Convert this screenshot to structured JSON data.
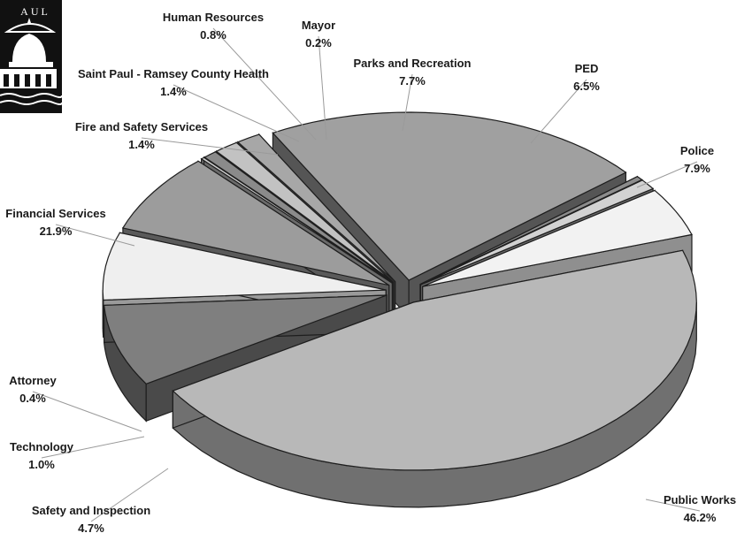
{
  "chart_data": {
    "type": "pie",
    "title": "",
    "slices": [
      {
        "label": "Public Works",
        "value": 46.2,
        "value_label": "46.2%",
        "color": "#b8b8b8",
        "side": "#707070"
      },
      {
        "label": "Police",
        "value": 7.9,
        "value_label": "7.9%",
        "color": "#7f7f7f",
        "side": "#4a4a4a"
      },
      {
        "label": "PED",
        "value": 6.5,
        "value_label": "6.5%",
        "color": "#efefef",
        "side": "#9a9a9a"
      },
      {
        "label": "Parks and Recreation",
        "value": 7.7,
        "value_label": "7.7%",
        "color": "#9c9c9c",
        "side": "#5a5a5a"
      },
      {
        "label": "Mayor",
        "value": 0.2,
        "value_label": "0.2%",
        "color": "#cfcfcf",
        "side": "#6a6a6a"
      },
      {
        "label": "Human Resources",
        "value": 0.8,
        "value_label": "0.8%",
        "color": "#8a8a8a",
        "side": "#4a4a4a"
      },
      {
        "label": "Saint Paul - Ramsey County Health",
        "value": 1.4,
        "value_label": "1.4%",
        "color": "#c2c2c2",
        "side": "#6a6a6a"
      },
      {
        "label": "Fire and Safety Services",
        "value": 1.4,
        "value_label": "1.4%",
        "color": "#a7a7a7",
        "side": "#555555"
      },
      {
        "label": "Financial Services",
        "value": 21.9,
        "value_label": "21.9%",
        "color": "#a0a0a0",
        "side": "#555555"
      },
      {
        "label": "Attorney",
        "value": 0.4,
        "value_label": "0.4%",
        "color": "#8c8c8c",
        "side": "#3c3c3c"
      },
      {
        "label": "Technology",
        "value": 1.0,
        "value_label": "1.0%",
        "color": "#d2d2d2",
        "side": "#6c6c6c"
      },
      {
        "label": "Safety and Inspection",
        "value": 4.7,
        "value_label": "4.7%",
        "color": "#f2f2f2",
        "side": "#8f8f8f"
      }
    ],
    "labels_style": "callouts",
    "legend": "none"
  },
  "logo": {
    "name": "saint-paul-city-logo",
    "text": "AUL"
  }
}
